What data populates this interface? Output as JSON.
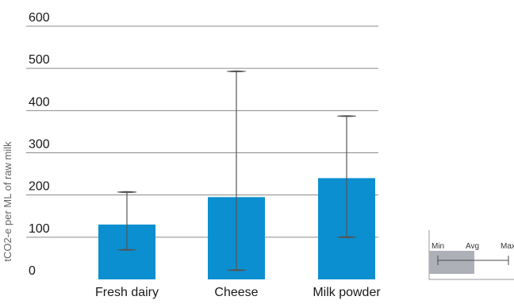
{
  "chart_data": {
    "type": "bar",
    "title": "",
    "xlabel": "",
    "ylabel": "tCO2-e per ML of raw milk",
    "ylim": [
      0,
      600
    ],
    "y_ticks": [
      0,
      100,
      200,
      300,
      400,
      500,
      600
    ],
    "y_tick_labels": [
      "0",
      "100",
      "200",
      "300",
      "400",
      "500",
      "600"
    ],
    "grid": true,
    "categories": [
      "Fresh dairy",
      "Cheese",
      "Milk powder"
    ],
    "values": [
      130,
      195,
      240
    ],
    "error_min": [
      70,
      22,
      100
    ],
    "error_max": [
      207,
      493,
      387
    ],
    "colors": {
      "bar": "#0b8fd0",
      "grid": "#8a8a8a",
      "error": "#555555",
      "text": "#1a1a1a",
      "axis_title": "#666666",
      "legend_box": "#aeb0b8"
    }
  },
  "legend_key": {
    "min_label": "Min",
    "avg_label": "Avg",
    "max_label": "Max"
  }
}
